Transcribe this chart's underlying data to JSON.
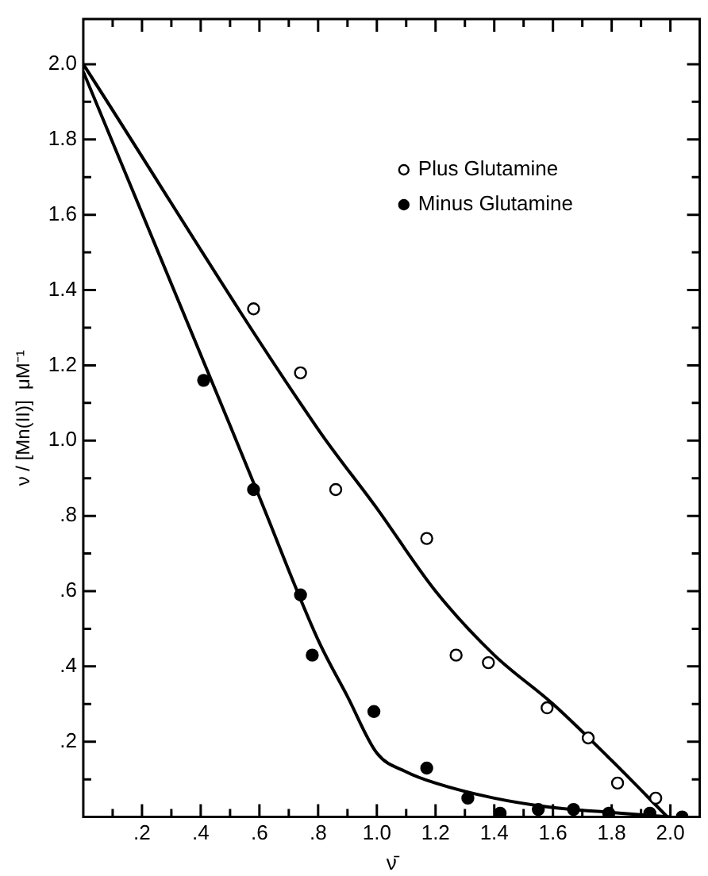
{
  "chart_data": {
    "type": "scatter",
    "xlabel": "ν̄",
    "ylabel": "ν / [Mn(II)]  μM⁻¹",
    "xlim": [
      0,
      2.1
    ],
    "ylim": [
      0,
      2.12
    ],
    "xticks": [
      {
        "value": 0.1,
        "label": null
      },
      {
        "value": 0.2,
        "label": ".2"
      },
      {
        "value": 0.3,
        "label": null
      },
      {
        "value": 0.4,
        "label": ".4"
      },
      {
        "value": 0.5,
        "label": null
      },
      {
        "value": 0.6,
        "label": ".6"
      },
      {
        "value": 0.7,
        "label": null
      },
      {
        "value": 0.8,
        "label": ".8"
      },
      {
        "value": 0.9,
        "label": null
      },
      {
        "value": 1.0,
        "label": "1.0"
      },
      {
        "value": 1.1,
        "label": null
      },
      {
        "value": 1.2,
        "label": "1.2"
      },
      {
        "value": 1.3,
        "label": null
      },
      {
        "value": 1.4,
        "label": "1.4"
      },
      {
        "value": 1.5,
        "label": null
      },
      {
        "value": 1.6,
        "label": "1.6"
      },
      {
        "value": 1.7,
        "label": null
      },
      {
        "value": 1.8,
        "label": "1.8"
      },
      {
        "value": 1.9,
        "label": null
      },
      {
        "value": 2.0,
        "label": "2.0"
      }
    ],
    "yticks": [
      {
        "value": 0.1,
        "label": null
      },
      {
        "value": 0.2,
        "label": ".2"
      },
      {
        "value": 0.3,
        "label": null
      },
      {
        "value": 0.4,
        "label": ".4"
      },
      {
        "value": 0.5,
        "label": null
      },
      {
        "value": 0.6,
        "label": ".6"
      },
      {
        "value": 0.7,
        "label": null
      },
      {
        "value": 0.8,
        "label": ".8"
      },
      {
        "value": 0.9,
        "label": null
      },
      {
        "value": 1.0,
        "label": "1.0"
      },
      {
        "value": 1.1,
        "label": null
      },
      {
        "value": 1.2,
        "label": "1.2"
      },
      {
        "value": 1.3,
        "label": null
      },
      {
        "value": 1.4,
        "label": "1.4"
      },
      {
        "value": 1.5,
        "label": null
      },
      {
        "value": 1.6,
        "label": "1.6"
      },
      {
        "value": 1.7,
        "label": null
      },
      {
        "value": 1.8,
        "label": "1.8"
      },
      {
        "value": 1.9,
        "label": null
      },
      {
        "value": 2.0,
        "label": "2.0"
      }
    ],
    "grid": false,
    "legend": "top right",
    "series": [
      {
        "name": "Plus Glutamine",
        "color": "#ffffff",
        "marker": "circle",
        "x": [
          0.58,
          0.74,
          0.86,
          1.17,
          1.27,
          1.38,
          1.58,
          1.72,
          1.82,
          1.95
        ],
        "values": [
          1.35,
          1.18,
          0.87,
          0.74,
          0.43,
          0.41,
          0.29,
          0.21,
          0.09,
          0.05
        ]
      },
      {
        "name": "Minus Glutamine",
        "color": "#000000",
        "marker": "circle",
        "x": [
          0.41,
          0.58,
          0.74,
          0.78,
          0.99,
          1.17,
          1.31,
          1.42,
          1.55,
          1.67,
          1.79,
          1.93,
          2.04
        ],
        "values": [
          1.16,
          0.87,
          0.59,
          0.43,
          0.28,
          0.13,
          0.05,
          0.01,
          0.02,
          0.02,
          0.01,
          0.01,
          0.0
        ]
      },
      {
        "type": "line",
        "color": "#000000",
        "marker": "none",
        "x": [
          0,
          0.8,
          1.0,
          1.2,
          1.4,
          1.6,
          1.8,
          1.99
        ],
        "values": [
          2.0,
          1.03,
          0.82,
          0.6,
          0.43,
          0.3,
          0.15,
          0.0
        ]
      },
      {
        "type": "line",
        "color": "#000000",
        "marker": "none",
        "x": [
          0,
          0.5,
          0.6,
          0.8,
          0.9,
          1.0,
          1.1,
          1.2,
          1.4,
          1.6,
          1.8,
          2.0
        ],
        "values": [
          1.98,
          1.04,
          0.85,
          0.47,
          0.32,
          0.17,
          0.12,
          0.09,
          0.05,
          0.025,
          0.012,
          0.0
        ]
      }
    ]
  }
}
